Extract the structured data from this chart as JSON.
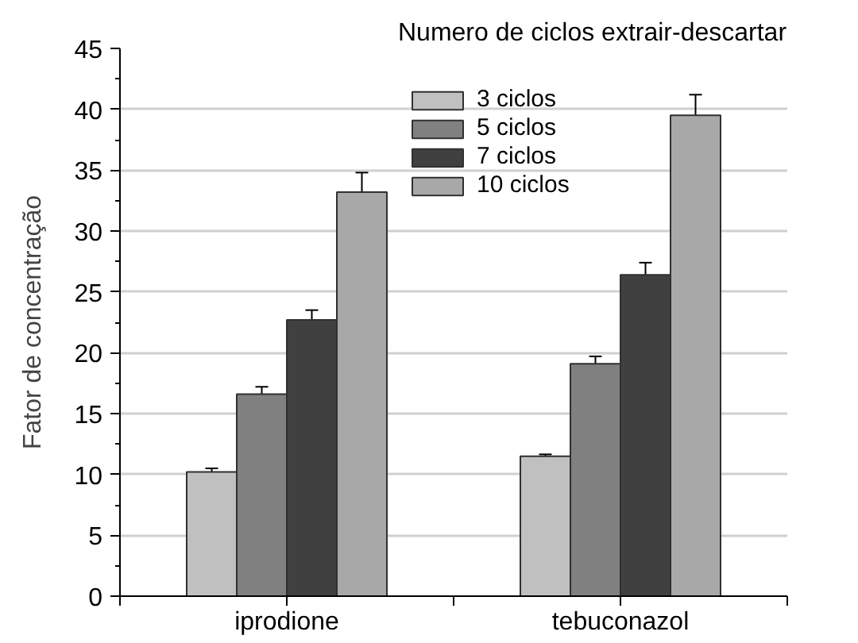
{
  "chart_data": {
    "type": "bar",
    "ylabel": "Fator de concentração",
    "legend_title": "Numero de ciclos extrair-descartar",
    "categories": [
      "iprodione",
      "tebuconazol"
    ],
    "series": [
      {
        "name": "3 ciclos",
        "color": "#c0c0c0",
        "values": [
          10.2,
          11.5
        ],
        "errors": [
          0.3,
          0.15
        ]
      },
      {
        "name": "5 ciclos",
        "color": "#808080",
        "values": [
          16.6,
          19.1
        ],
        "errors": [
          0.6,
          0.6
        ]
      },
      {
        "name": "7 ciclos",
        "color": "#404040",
        "values": [
          22.7,
          26.4
        ],
        "errors": [
          0.8,
          1.0
        ]
      },
      {
        "name": "10 ciclos",
        "color": "#a8a8a8",
        "values": [
          33.2,
          39.5
        ],
        "errors": [
          1.6,
          1.7
        ]
      }
    ],
    "ylim": [
      0,
      45
    ],
    "yticks": [
      0,
      5,
      10,
      15,
      20,
      25,
      30,
      35,
      40,
      45
    ],
    "grid": "y",
    "legend": "top right"
  }
}
